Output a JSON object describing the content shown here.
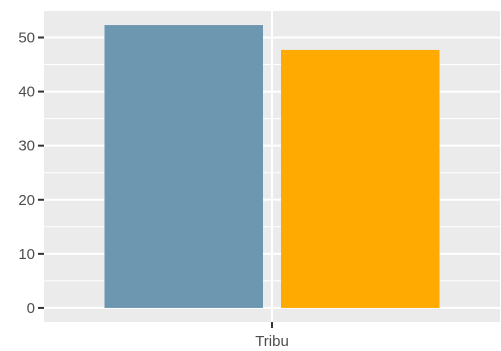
{
  "chart_data": {
    "type": "bar",
    "categories": [
      "Tribu"
    ],
    "series": [
      {
        "values": [
          52.3
        ],
        "color": "#6d97b0"
      },
      {
        "values": [
          47.7
        ],
        "color": "#ffaa00"
      }
    ],
    "title": "",
    "xlabel": "",
    "ylabel": "",
    "ylim": [
      -2.6,
      54.9
    ],
    "yticks": [
      0,
      10,
      20,
      30,
      40,
      50
    ],
    "grid": true,
    "panel_background": "#ebebeb",
    "grid_color": "#ffffff"
  }
}
